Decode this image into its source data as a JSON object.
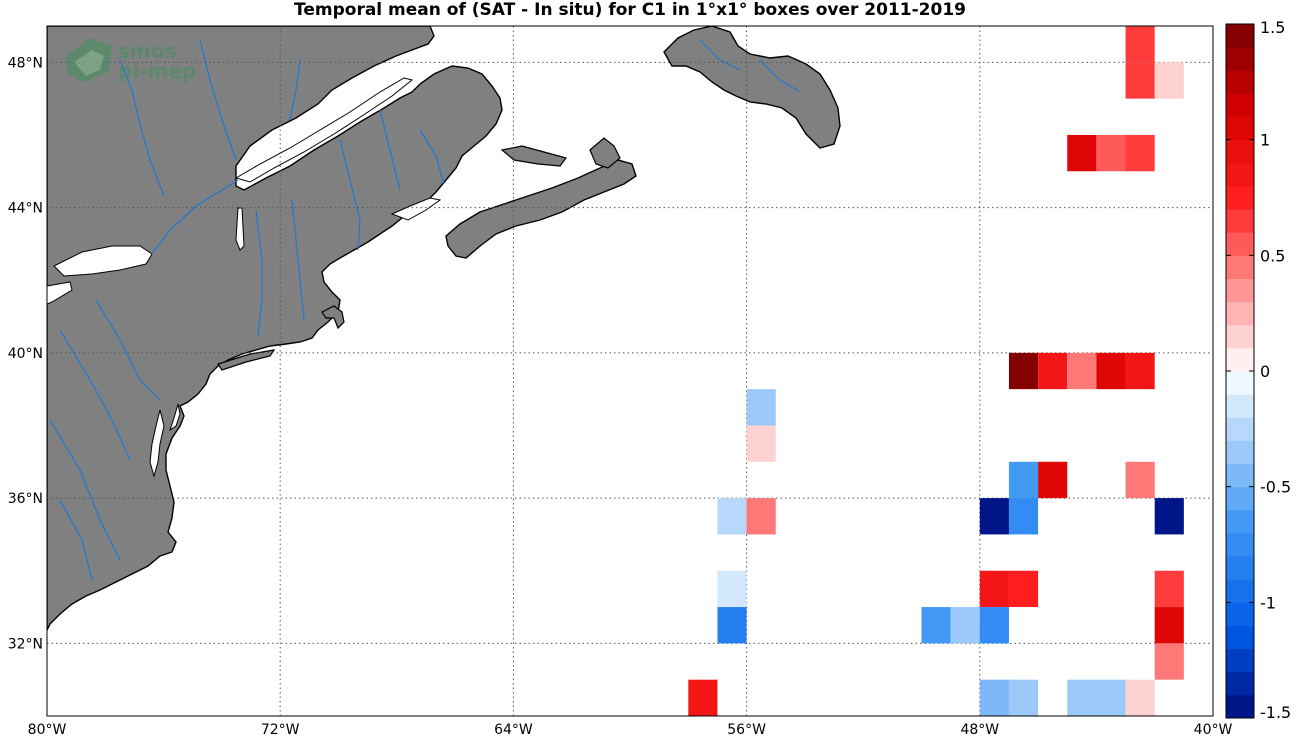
{
  "title": "Temporal mean of (SAT - In situ) for C1 in 1°x1° boxes over 2011-2019",
  "watermark": {
    "line1": "smos",
    "line2": "pi-mep",
    "logo_icon": "smos-logo-icon"
  },
  "map": {
    "lon_range": [
      -80,
      -40
    ],
    "lat_range": [
      30,
      49
    ],
    "grid": true,
    "grid_style": "dotted",
    "land_color": "#808080",
    "coast_color": "#000000",
    "river_color": "#1f77d4",
    "lon_ticks": [
      {
        "value": -80,
        "label": "80°W"
      },
      {
        "value": -72,
        "label": "72°W"
      },
      {
        "value": -64,
        "label": "64°W"
      },
      {
        "value": -56,
        "label": "56°W"
      },
      {
        "value": -48,
        "label": "48°W"
      },
      {
        "value": -40,
        "label": "40°W"
      }
    ],
    "lat_ticks": [
      {
        "value": 32,
        "label": "32°N"
      },
      {
        "value": 36,
        "label": "36°N"
      },
      {
        "value": 40,
        "label": "40°N"
      },
      {
        "value": 44,
        "label": "44°N"
      },
      {
        "value": 48,
        "label": "48°N"
      }
    ]
  },
  "colorbar": {
    "range": [
      -1.5,
      1.5
    ],
    "levels": 30,
    "placement": "right",
    "ticks": [
      {
        "value": 1.5,
        "label": "1.5"
      },
      {
        "value": 1,
        "label": "1"
      },
      {
        "value": 0.5,
        "label": "0.5"
      },
      {
        "value": 0,
        "label": "0"
      },
      {
        "value": -0.5,
        "label": "-0.5"
      },
      {
        "value": -1,
        "label": "-1"
      },
      {
        "value": -1.5,
        "label": "-1.5"
      }
    ]
  },
  "chart_data": {
    "type": "heatmap",
    "title": "Temporal mean of (SAT - In situ) for C1 in 1°x1° boxes over 2011-2019",
    "cell_size_deg": 1,
    "cells": [
      {
        "lon": -42.5,
        "lat": 48.5,
        "value": 0.65
      },
      {
        "lon": -42.5,
        "lat": 47.5,
        "value": 0.65
      },
      {
        "lon": -41.5,
        "lat": 47.5,
        "value": 0.15
      },
      {
        "lon": -44.5,
        "lat": 45.5,
        "value": 1.0
      },
      {
        "lon": -43.5,
        "lat": 45.5,
        "value": 0.5
      },
      {
        "lon": -42.5,
        "lat": 45.5,
        "value": 0.65
      },
      {
        "lon": -46.5,
        "lat": 39.5,
        "value": 1.4
      },
      {
        "lon": -45.5,
        "lat": 39.5,
        "value": 0.85
      },
      {
        "lon": -44.5,
        "lat": 39.5,
        "value": 0.4
      },
      {
        "lon": -43.5,
        "lat": 39.5,
        "value": 1.0
      },
      {
        "lon": -42.5,
        "lat": 39.5,
        "value": 0.9
      },
      {
        "lon": -55.5,
        "lat": 38.5,
        "value": -0.4
      },
      {
        "lon": -55.5,
        "lat": 37.5,
        "value": 0.15
      },
      {
        "lon": -46.5,
        "lat": 36.5,
        "value": -0.65
      },
      {
        "lon": -45.5,
        "lat": 36.5,
        "value": 1.0
      },
      {
        "lon": -42.5,
        "lat": 36.5,
        "value": 0.4
      },
      {
        "lon": -56.5,
        "lat": 35.5,
        "value": -0.25
      },
      {
        "lon": -55.5,
        "lat": 35.5,
        "value": 0.45
      },
      {
        "lon": -47.5,
        "lat": 35.5,
        "value": -1.5
      },
      {
        "lon": -46.5,
        "lat": 35.5,
        "value": -0.75
      },
      {
        "lon": -41.5,
        "lat": 35.5,
        "value": -1.5
      },
      {
        "lon": -56.5,
        "lat": 33.5,
        "value": -0.15
      },
      {
        "lon": -47.5,
        "lat": 33.5,
        "value": 0.85
      },
      {
        "lon": -46.5,
        "lat": 33.5,
        "value": 0.7
      },
      {
        "lon": -41.5,
        "lat": 33.5,
        "value": 0.65
      },
      {
        "lon": -56.5,
        "lat": 32.5,
        "value": -0.85
      },
      {
        "lon": -49.5,
        "lat": 32.5,
        "value": -0.65
      },
      {
        "lon": -48.5,
        "lat": 32.5,
        "value": -0.3
      },
      {
        "lon": -47.5,
        "lat": 32.5,
        "value": -0.75
      },
      {
        "lon": -41.5,
        "lat": 32.5,
        "value": 1.0
      },
      {
        "lon": -41.5,
        "lat": 31.5,
        "value": 0.45
      },
      {
        "lon": -57.5,
        "lat": 30.5,
        "value": 0.9
      },
      {
        "lon": -47.5,
        "lat": 30.5,
        "value": -0.5
      },
      {
        "lon": -46.5,
        "lat": 30.5,
        "value": -0.4
      },
      {
        "lon": -44.5,
        "lat": 30.5,
        "value": -0.3
      },
      {
        "lon": -43.5,
        "lat": 30.5,
        "value": -0.3
      },
      {
        "lon": -42.5,
        "lat": 30.5,
        "value": 0.15
      }
    ]
  }
}
